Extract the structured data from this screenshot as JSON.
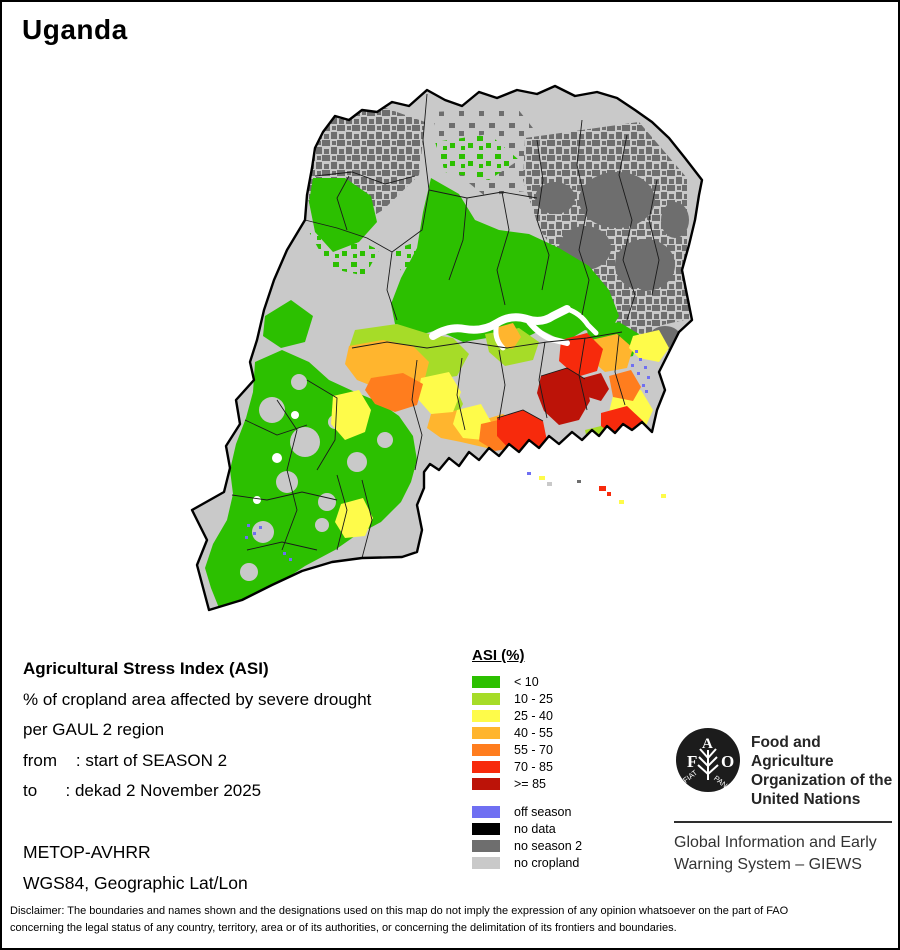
{
  "title": "Uganda",
  "info": {
    "heading": "Agricultural Stress Index (ASI)",
    "subtitle": "% of cropland area affected by severe drought",
    "region_line": "per GAUL 2 region",
    "from_line": "from    : start of SEASON 2",
    "to_line": "to      : dekad 2 November 2025",
    "sensor": "METOP-AVHRR",
    "projection": "WGS84, Geographic Lat/Lon"
  },
  "legend": {
    "title": "ASI (%)",
    "classes": [
      {
        "label": "< 10",
        "color": "#2CC000"
      },
      {
        "label": "10 - 25",
        "color": "#A6DC28"
      },
      {
        "label": "25 - 40",
        "color": "#FEFB4A"
      },
      {
        "label": "40 - 55",
        "color": "#FFB52E"
      },
      {
        "label": "55 - 70",
        "color": "#FF7D1E"
      },
      {
        "label": "70 - 85",
        "color": "#F72A0C"
      },
      {
        "label": ">= 85",
        "color": "#BC1308"
      }
    ],
    "extra_classes": [
      {
        "label": "off season",
        "color": "#6F6FF2"
      },
      {
        "label": "no data",
        "color": "#000000"
      },
      {
        "label": "no season 2",
        "color": "#6E6E6E"
      },
      {
        "label": "no cropland",
        "color": "#C9C9C9"
      }
    ]
  },
  "fao": {
    "logo_letter_f": "F",
    "logo_letter_a": "A",
    "logo_letter_o": "O",
    "motto_left": "FIAT",
    "motto_right": "PANIS",
    "org_name_lines": [
      "Food and Agriculture",
      "Organization of the",
      "United Nations"
    ],
    "giews_lines": [
      "Global Information and Early",
      "Warning System – GIEWS"
    ]
  },
  "disclaimer": {
    "line1": "Disclaimer: The boundaries and names shown and the designations used on this map do not imply the expression of any opinion whatsoever on the part of FAO",
    "line2": "concerning the legal status of any country, territory, area or of its authorities, or concerning the delimitation of its frontiers and boundaries."
  }
}
